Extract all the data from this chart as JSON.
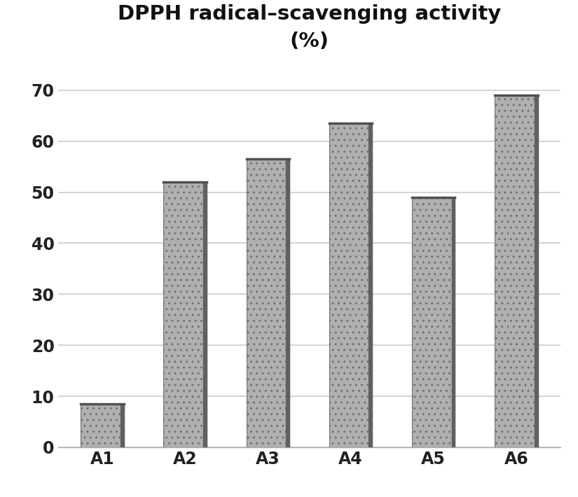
{
  "categories": [
    "A1",
    "A2",
    "A3",
    "A4",
    "A5",
    "A6"
  ],
  "values": [
    8.5,
    52.0,
    56.5,
    63.5,
    49.0,
    69.0
  ],
  "bar_color": "#b0b0b0",
  "bar_edge_color": "#707070",
  "bar_shadow_color": "#606060",
  "title_line1": "DPPH radical–scavenging activity",
  "title_line2": "(%)",
  "title_fontsize": 21,
  "tick_fontsize": 17,
  "xlabel_fontsize": 17,
  "ylim": [
    0,
    75
  ],
  "yticks": [
    0,
    10,
    20,
    30,
    40,
    50,
    60,
    70
  ],
  "background_color": "#ffffff",
  "plot_bg_color": "#ffffff",
  "grid_color": "#cccccc",
  "bar_width": 0.52
}
